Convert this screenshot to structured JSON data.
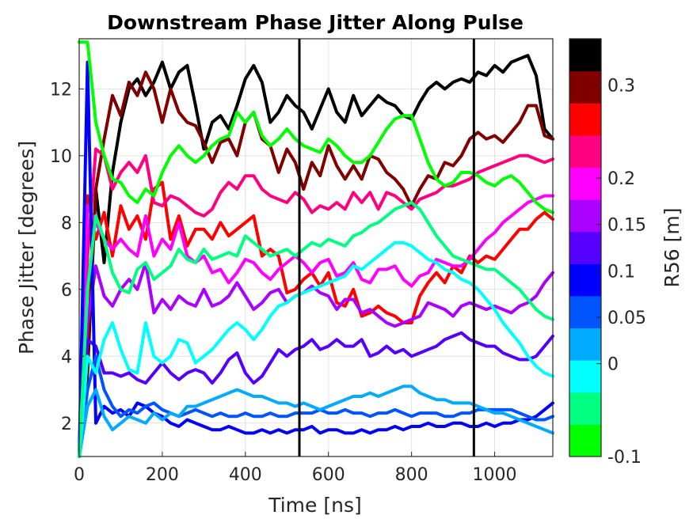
{
  "chart_data": {
    "type": "line",
    "title": "Downstream Phase Jitter Along Pulse",
    "xlabel": "Time [ns]",
    "ylabel": "Phase Jitter [degrees]",
    "xlim": [
      0,
      1140
    ],
    "ylim": [
      1,
      13.5
    ],
    "xticks": [
      0,
      200,
      400,
      600,
      800,
      1000
    ],
    "yticks": [
      2,
      4,
      6,
      8,
      10,
      12
    ],
    "grid": true,
    "vertical_markers": [
      530,
      950
    ],
    "colorbar": {
      "label": "R56 [m]",
      "range": [
        -0.1,
        0.35
      ],
      "ticks": [
        -0.1,
        0,
        0.05,
        0.1,
        0.15,
        0.2,
        0.3
      ],
      "colors": [
        "#00ff00",
        "#00ff80",
        "#00ffff",
        "#00aaff",
        "#0055ff",
        "#0000ff",
        "#5500ff",
        "#aa00ff",
        "#ff00ff",
        "#ff0080",
        "#ff0000",
        "#800000",
        "#000000"
      ]
    },
    "x": [
      0,
      20,
      40,
      60,
      80,
      100,
      120,
      140,
      160,
      180,
      200,
      220,
      240,
      260,
      280,
      300,
      320,
      340,
      360,
      380,
      400,
      420,
      440,
      460,
      480,
      500,
      520,
      540,
      560,
      580,
      600,
      620,
      640,
      660,
      680,
      700,
      720,
      740,
      760,
      780,
      800,
      820,
      840,
      860,
      880,
      900,
      920,
      940,
      960,
      980,
      1000,
      1020,
      1040,
      1060,
      1080,
      1100,
      1120,
      1140
    ],
    "series": [
      {
        "color": "#000000",
        "values": [
          1.0,
          3.5,
          9.0,
          6.8,
          9.5,
          11.0,
          12.0,
          12.3,
          11.8,
          12.2,
          12.8,
          12.0,
          12.5,
          12.7,
          11.5,
          10.2,
          11.0,
          11.2,
          10.8,
          11.5,
          12.3,
          12.7,
          12.2,
          11.0,
          11.3,
          11.8,
          11.5,
          11.3,
          10.8,
          11.4,
          12.0,
          11.3,
          11.0,
          11.8,
          11.2,
          11.5,
          11.8,
          11.6,
          11.5,
          11.2,
          11.1,
          11.6,
          12.0,
          12.2,
          12.0,
          12.2,
          12.3,
          12.2,
          12.5,
          12.4,
          12.7,
          12.5,
          12.8,
          12.9,
          13.0,
          12.4,
          10.8,
          10.5
        ]
      },
      {
        "color": "#800000",
        "values": [
          1.0,
          4.0,
          9.0,
          10.5,
          11.8,
          11.2,
          12.2,
          11.8,
          12.5,
          12.0,
          11.0,
          12.0,
          11.3,
          11.0,
          10.9,
          10.4,
          9.8,
          10.4,
          10.5,
          10.0,
          11.0,
          11.3,
          10.5,
          10.3,
          9.5,
          10.2,
          9.8,
          9.0,
          9.8,
          9.4,
          10.3,
          9.7,
          9.3,
          9.7,
          9.3,
          10.0,
          9.9,
          9.5,
          9.3,
          9.0,
          8.5,
          9.0,
          9.4,
          9.3,
          9.8,
          9.7,
          10.0,
          10.5,
          10.7,
          10.5,
          10.6,
          10.4,
          10.7,
          11.0,
          11.5,
          11.5,
          10.6,
          10.5
        ]
      },
      {
        "color": "#ff0000",
        "values": [
          1.0,
          8.8,
          7.5,
          8.3,
          7.0,
          8.5,
          7.8,
          8.2,
          7.5,
          9.0,
          9.2,
          7.5,
          8.2,
          7.3,
          7.8,
          7.8,
          7.5,
          8.0,
          7.6,
          7.8,
          8.0,
          8.2,
          7.0,
          7.2,
          7.0,
          5.9,
          6.0,
          6.3,
          6.5,
          6.1,
          6.5,
          5.6,
          5.5,
          6.0,
          5.2,
          5.3,
          5.5,
          5.3,
          5.2,
          5.0,
          5.0,
          5.8,
          6.2,
          6.5,
          6.2,
          6.7,
          6.5,
          7.0,
          6.8,
          7.0,
          6.9,
          7.2,
          7.5,
          7.8,
          7.8,
          8.1,
          8.3,
          8.1
        ]
      },
      {
        "color": "#ff0080",
        "values": [
          1.0,
          7.0,
          10.2,
          10.0,
          9.0,
          9.5,
          9.8,
          9.5,
          10.0,
          8.6,
          8.5,
          8.8,
          8.7,
          8.5,
          8.3,
          8.2,
          8.4,
          8.9,
          9.2,
          9.0,
          9.4,
          9.4,
          9.0,
          8.8,
          8.7,
          8.6,
          8.9,
          8.7,
          8.3,
          8.5,
          8.4,
          8.6,
          8.4,
          8.9,
          8.6,
          8.9,
          8.4,
          8.9,
          8.8,
          8.6,
          8.4,
          8.7,
          8.8,
          8.9,
          9.1,
          9.1,
          9.2,
          9.3,
          9.5,
          9.6,
          9.7,
          9.8,
          9.9,
          10.0,
          10.0,
          9.9,
          9.8,
          9.9
        ]
      },
      {
        "color": "#ff00ff",
        "values": [
          1.0,
          8.5,
          8.0,
          7.5,
          7.2,
          7.5,
          7.2,
          7.0,
          8.2,
          7.0,
          7.5,
          7.2,
          8.0,
          7.0,
          6.8,
          7.0,
          6.5,
          6.6,
          6.2,
          6.5,
          6.9,
          6.8,
          6.5,
          6.3,
          6.6,
          6.8,
          7.0,
          6.8,
          6.5,
          6.8,
          6.9,
          6.4,
          6.5,
          6.8,
          6.3,
          6.2,
          6.6,
          6.6,
          6.7,
          6.3,
          6.1,
          6.4,
          6.5,
          6.9,
          6.8,
          6.7,
          6.7,
          6.9,
          7.2,
          7.5,
          7.7,
          8.0,
          8.2,
          8.4,
          8.6,
          8.7,
          8.8,
          8.8
        ]
      },
      {
        "color": "#aa00ff",
        "values": [
          1.0,
          5.0,
          6.7,
          5.8,
          5.5,
          6.0,
          6.3,
          6.0,
          6.8,
          5.3,
          5.7,
          5.4,
          5.8,
          5.6,
          5.5,
          6.0,
          5.5,
          5.6,
          5.8,
          6.2,
          5.8,
          5.4,
          5.6,
          5.9,
          6.0,
          5.6,
          5.8,
          5.9,
          6.1,
          5.9,
          5.8,
          5.4,
          5.7,
          5.7,
          5.3,
          5.4,
          5.2,
          5.0,
          4.9,
          5.0,
          5.1,
          5.2,
          5.6,
          5.5,
          5.4,
          5.2,
          5.5,
          5.6,
          5.5,
          5.4,
          5.5,
          5.4,
          5.3,
          5.5,
          5.6,
          5.8,
          6.2,
          6.5
        ]
      },
      {
        "color": "#5500ff",
        "values": [
          1.0,
          4.5,
          4.3,
          3.5,
          3.5,
          3.4,
          3.5,
          3.3,
          3.2,
          3.5,
          3.8,
          3.5,
          3.3,
          3.5,
          3.6,
          3.5,
          3.2,
          3.5,
          3.9,
          4.1,
          3.5,
          3.2,
          3.4,
          3.8,
          4.2,
          4.0,
          4.2,
          4.3,
          4.5,
          4.2,
          4.3,
          4.5,
          4.3,
          4.3,
          4.5,
          4.0,
          4.1,
          4.3,
          4.1,
          4.2,
          4.0,
          4.1,
          4.2,
          4.3,
          4.5,
          4.6,
          4.7,
          4.5,
          4.4,
          4.3,
          4.3,
          4.1,
          4.0,
          3.9,
          3.9,
          4.0,
          4.3,
          4.6
        ]
      },
      {
        "color": "#0000ff",
        "values": [
          1.0,
          12.8,
          2.0,
          2.5,
          2.3,
          2.4,
          2.2,
          2.6,
          2.5,
          2.3,
          2.2,
          2.0,
          1.9,
          2.1,
          2.0,
          1.9,
          1.8,
          1.8,
          1.9,
          1.8,
          1.7,
          1.7,
          1.8,
          1.7,
          1.8,
          1.7,
          1.8,
          1.8,
          1.9,
          1.7,
          1.8,
          1.8,
          1.7,
          1.7,
          1.8,
          1.7,
          1.8,
          1.8,
          1.9,
          1.8,
          1.9,
          1.9,
          2.0,
          1.9,
          1.9,
          2.0,
          2.0,
          1.9,
          1.9,
          2.0,
          1.9,
          2.0,
          2.0,
          2.1,
          2.1,
          2.2,
          2.4,
          2.6
        ]
      },
      {
        "color": "#0055ff",
        "values": [
          1.0,
          3.0,
          4.0,
          3.0,
          2.5,
          2.2,
          2.4,
          2.3,
          2.5,
          2.6,
          2.4,
          2.3,
          2.2,
          2.3,
          2.4,
          2.3,
          2.2,
          2.3,
          2.2,
          2.2,
          2.3,
          2.2,
          2.2,
          2.3,
          2.2,
          2.2,
          2.3,
          2.3,
          2.3,
          2.4,
          2.3,
          2.3,
          2.4,
          2.3,
          2.3,
          2.2,
          2.3,
          2.3,
          2.4,
          2.3,
          2.2,
          2.3,
          2.3,
          2.3,
          2.2,
          2.2,
          2.3,
          2.3,
          2.4,
          2.4,
          2.4,
          2.4,
          2.4,
          2.3,
          2.2,
          2.1,
          2.1,
          2.2
        ]
      },
      {
        "color": "#00aaff",
        "values": [
          1.0,
          2.5,
          3.0,
          2.2,
          1.8,
          2.0,
          2.2,
          2.1,
          2.0,
          2.3,
          2.1,
          2.3,
          2.2,
          2.5,
          2.5,
          2.6,
          2.7,
          2.8,
          2.9,
          3.0,
          2.9,
          2.8,
          2.8,
          2.7,
          2.6,
          2.6,
          2.5,
          2.6,
          2.5,
          2.4,
          2.5,
          2.6,
          2.7,
          2.8,
          2.8,
          2.9,
          2.8,
          2.9,
          3.0,
          3.1,
          3.1,
          2.9,
          2.8,
          2.7,
          2.7,
          2.6,
          2.6,
          2.6,
          2.5,
          2.4,
          2.3,
          2.3,
          2.2,
          2.1,
          2.0,
          1.9,
          1.8,
          1.7
        ]
      },
      {
        "color": "#00ffff",
        "values": [
          1.0,
          4.0,
          3.5,
          4.5,
          5.0,
          4.2,
          3.6,
          3.5,
          5.0,
          4.0,
          3.8,
          4.0,
          4.5,
          4.4,
          3.8,
          4.0,
          4.2,
          4.5,
          4.8,
          5.0,
          4.8,
          4.5,
          4.8,
          5.2,
          5.5,
          5.6,
          5.8,
          5.9,
          6.0,
          6.1,
          6.2,
          6.3,
          6.4,
          6.7,
          6.6,
          6.8,
          7.0,
          7.2,
          7.4,
          7.4,
          7.3,
          7.1,
          6.9,
          6.8,
          6.6,
          6.5,
          6.3,
          6.2,
          6.0,
          5.7,
          5.4,
          5.0,
          4.7,
          4.4,
          4.0,
          3.7,
          3.5,
          3.4
        ]
      },
      {
        "color": "#00ff80",
        "values": [
          1.0,
          6.0,
          8.2,
          7.5,
          6.5,
          6.0,
          5.9,
          6.6,
          6.8,
          6.3,
          6.5,
          6.7,
          7.2,
          6.9,
          6.8,
          7.2,
          6.9,
          7.0,
          7.1,
          7.0,
          7.6,
          7.4,
          7.2,
          7.0,
          7.1,
          7.2,
          7.0,
          7.2,
          7.4,
          7.3,
          7.5,
          7.4,
          7.3,
          7.6,
          7.7,
          7.9,
          8.0,
          8.2,
          8.4,
          8.5,
          8.6,
          8.4,
          8.0,
          7.6,
          7.3,
          7.0,
          6.9,
          6.8,
          6.7,
          6.6,
          6.6,
          6.4,
          6.2,
          6.0,
          5.7,
          5.4,
          5.2,
          5.1
        ]
      },
      {
        "color": "#00ff00",
        "values": [
          13.4,
          13.4,
          11.0,
          10.0,
          9.3,
          9.2,
          8.8,
          8.6,
          9.0,
          8.8,
          9.5,
          10.0,
          10.3,
          10.0,
          9.8,
          10.0,
          10.3,
          10.5,
          10.6,
          11.3,
          11.0,
          11.3,
          10.6,
          10.3,
          10.5,
          10.8,
          10.5,
          10.3,
          10.2,
          10.1,
          10.5,
          10.3,
          10.0,
          9.8,
          9.8,
          10.0,
          10.4,
          10.8,
          11.1,
          11.2,
          11.2,
          10.5,
          9.8,
          9.3,
          9.1,
          9.2,
          9.5,
          9.5,
          9.4,
          9.2,
          9.1,
          9.3,
          9.4,
          9.2,
          8.9,
          8.6,
          8.4,
          8.3
        ]
      }
    ]
  }
}
